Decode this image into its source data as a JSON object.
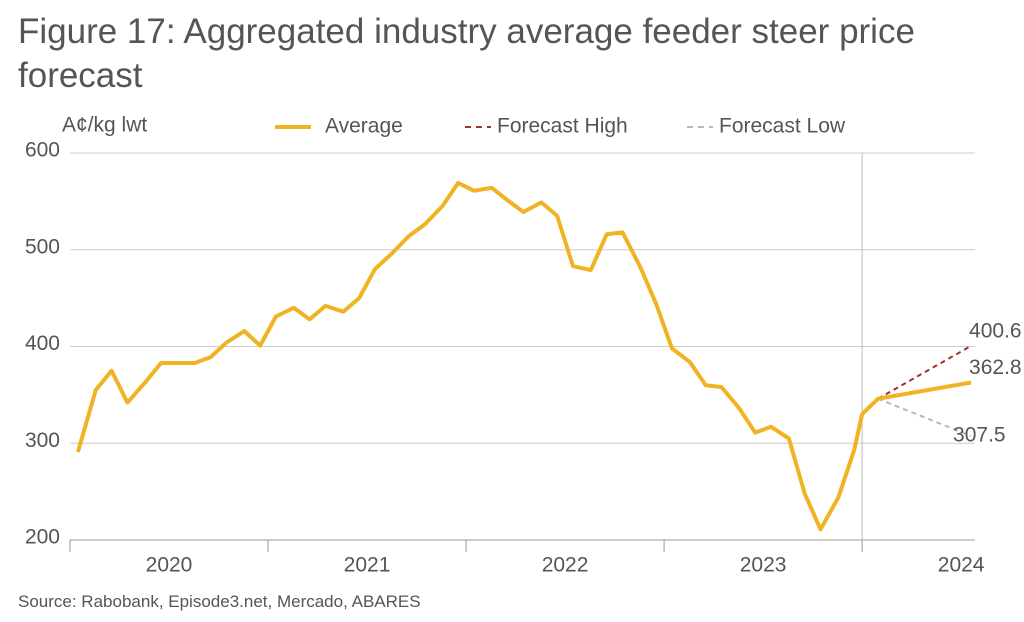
{
  "chart_data": {
    "type": "line",
    "title": "Figure 17: Aggregated industry average feeder steer price forecast",
    "y_axis_label": "A¢/kg lwt",
    "source": "Source: Rabobank, Episode3.net, Mercado, ABARES",
    "xlim": [
      2020,
      2024.57
    ],
    "xticks": [
      {
        "value": 2020.5,
        "label": "2020"
      },
      {
        "value": 2021.5,
        "label": "2021"
      },
      {
        "value": 2022.5,
        "label": "2022"
      },
      {
        "value": 2023.5,
        "label": "2023"
      },
      {
        "value": 2024.5,
        "label": "2024"
      }
    ],
    "x_dividers": [
      2020,
      2021,
      2022,
      2023,
      2024
    ],
    "forecast_start": 2024,
    "ylim": [
      200,
      600
    ],
    "yticks": [
      200,
      300,
      400,
      500,
      600
    ],
    "grid": true,
    "legend": "top",
    "series": [
      {
        "name": "Average",
        "color": "#f0b323",
        "style": "solid",
        "x": [
          2020.04,
          2020.13,
          2020.21,
          2020.29,
          2020.38,
          2020.46,
          2020.54,
          2020.63,
          2020.71,
          2020.79,
          2020.88,
          2020.96,
          2021.04,
          2021.13,
          2021.21,
          2021.29,
          2021.38,
          2021.46,
          2021.54,
          2021.63,
          2021.71,
          2021.79,
          2021.88,
          2021.96,
          2022.04,
          2022.13,
          2022.21,
          2022.29,
          2022.38,
          2022.46,
          2022.54,
          2022.63,
          2022.71,
          2022.79,
          2022.88,
          2022.96,
          2023.04,
          2023.13,
          2023.21,
          2023.29,
          2023.38,
          2023.46,
          2023.54,
          2023.63,
          2023.71,
          2023.79,
          2023.88,
          2023.96,
          2024.0,
          2024.08,
          2024.55
        ],
        "values": [
          291,
          355,
          375,
          342,
          363,
          383,
          383,
          383,
          389,
          404,
          416,
          401,
          431,
          440,
          428,
          442,
          436,
          450,
          480,
          497,
          514,
          526,
          545,
          569,
          561,
          564,
          551,
          539,
          549,
          535,
          483,
          479,
          516,
          518,
          482,
          444,
          398,
          384,
          360,
          358,
          336,
          311,
          317,
          305,
          248,
          211,
          244,
          293,
          330,
          346,
          362.8
        ]
      },
      {
        "name": "Forecast High",
        "color": "#a3312f",
        "style": "dashed",
        "x": [
          2024.08,
          2024.55
        ],
        "values": [
          346,
          400.6
        ]
      },
      {
        "name": "Forecast Low",
        "color": "#b8b8b8",
        "style": "dashed",
        "x": [
          2024.08,
          2024.55
        ],
        "values": [
          346,
          307.5
        ]
      }
    ]
  }
}
